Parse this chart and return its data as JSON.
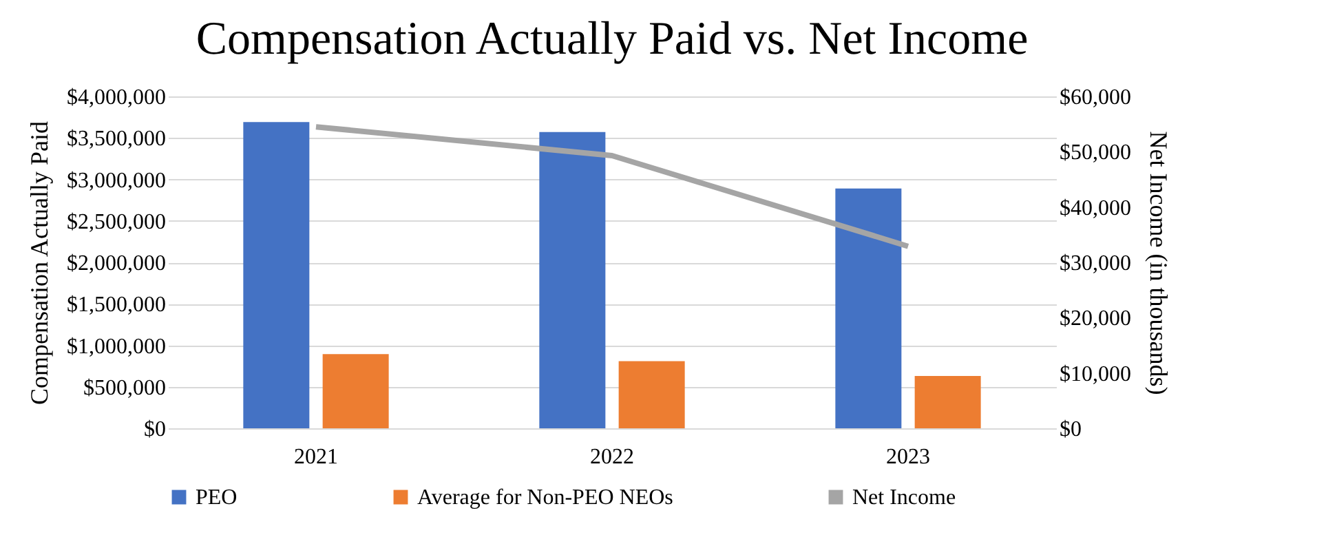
{
  "chart_data": {
    "type": "bar",
    "title": "Compensation Actually Paid vs. Net Income",
    "ylabel": "Compensation Actually Paid",
    "y2label": "Net Income (in thousands)",
    "categories": [
      "2021",
      "2022",
      "2023"
    ],
    "series": [
      {
        "name": "PEO",
        "color": "#4472c4",
        "values": [
          3690000,
          3570000,
          2890000
        ]
      },
      {
        "name": "Average for Non-PEO NEOs",
        "color": "#ed7d31",
        "values": [
          895000,
          810000,
          630000
        ]
      },
      {
        "name": "Net Income",
        "type": "line",
        "axis": "y2",
        "color": "#a5a5a5",
        "values": [
          54500,
          49300,
          32900
        ]
      }
    ],
    "ylim": [
      0,
      4000000
    ],
    "yticks": [
      {
        "value": 0,
        "label": "$0"
      },
      {
        "value": 500000,
        "label": "$500,000"
      },
      {
        "value": 1000000,
        "label": "$1,000,000"
      },
      {
        "value": 1500000,
        "label": "$1,500,000"
      },
      {
        "value": 2000000,
        "label": "$2,000,000"
      },
      {
        "value": 2500000,
        "label": "$2,500,000"
      },
      {
        "value": 3000000,
        "label": "$3,000,000"
      },
      {
        "value": 3500000,
        "label": "$3,500,000"
      },
      {
        "value": 4000000,
        "label": "$4,000,000"
      }
    ],
    "y2lim": [
      0,
      60000
    ],
    "y2ticks": [
      {
        "value": 0,
        "label": "$0"
      },
      {
        "value": 10000,
        "label": "$10,000"
      },
      {
        "value": 20000,
        "label": "$20,000"
      },
      {
        "value": 30000,
        "label": "$30,000"
      },
      {
        "value": 40000,
        "label": "$40,000"
      },
      {
        "value": 50000,
        "label": "$50,000"
      },
      {
        "value": 60000,
        "label": "$60,000"
      }
    ],
    "grid": "y",
    "legend": "bottom"
  }
}
